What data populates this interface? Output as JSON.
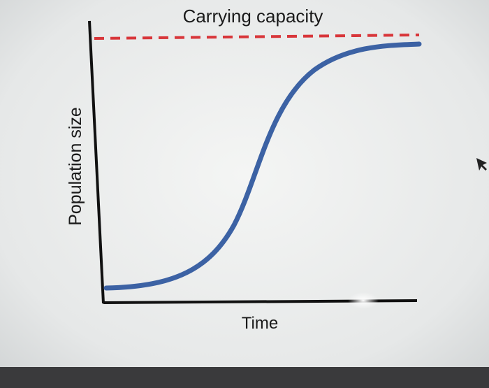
{
  "title": "Carrying capacity",
  "y_axis_label": "Population size",
  "x_axis_label": "Time"
}
